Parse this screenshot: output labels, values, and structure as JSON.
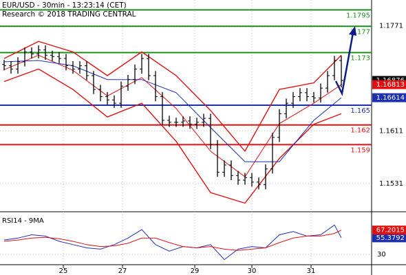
{
  "header": {
    "title": "EUR/USD - 30min - 13:23:14 (CET)",
    "subtitle": "Research © 2018 TRADING CENTRAL"
  },
  "chart_data": [
    {
      "type": "ohlc",
      "xlim": [
        -0.6,
        53.4
      ],
      "xticks": [
        {
          "value": 8.6,
          "label": "25"
        },
        {
          "value": 17.2,
          "label": "27"
        },
        {
          "value": 27.7,
          "label": "29"
        },
        {
          "value": 36,
          "label": "30"
        },
        {
          "value": 44.6,
          "label": "31"
        }
      ],
      "ylim": [
        1.149,
        1.181
      ],
      "yticks": [
        1.1531,
        1.1611,
        1.1771
      ],
      "grid": true,
      "color": "#000000",
      "open": [
        1.1712,
        1.171,
        1.1705,
        1.1716,
        1.1731,
        1.1728,
        1.1734,
        1.1726,
        1.1724,
        1.1721,
        1.171,
        1.1705,
        1.171,
        1.1695,
        1.1674,
        1.1663,
        1.1658,
        1.1653,
        1.1679,
        1.1689,
        1.1705,
        1.1721,
        1.1695,
        1.1663,
        1.1627,
        1.1624,
        1.1624,
        1.1626,
        1.1621,
        1.1624,
        1.163,
        1.159,
        1.1548,
        1.1559,
        1.1543,
        1.1536,
        1.154,
        1.1533,
        1.1529,
        1.1553,
        1.1601,
        1.1637,
        1.1653,
        1.1663,
        1.1669,
        1.1663,
        1.1661,
        1.1676,
        1.1695,
        1.1718
      ],
      "high": [
        1.1719,
        1.1717,
        1.1723,
        1.1738,
        1.1738,
        1.1741,
        1.1741,
        1.1733,
        1.1731,
        1.1728,
        1.1717,
        1.1717,
        1.1717,
        1.1702,
        1.1681,
        1.167,
        1.1665,
        1.1686,
        1.1696,
        1.1712,
        1.1728,
        1.1728,
        1.1702,
        1.167,
        1.1634,
        1.1631,
        1.1633,
        1.1633,
        1.1631,
        1.1637,
        1.1637,
        1.1597,
        1.1566,
        1.1566,
        1.155,
        1.1547,
        1.1547,
        1.154,
        1.156,
        1.1608,
        1.1644,
        1.166,
        1.167,
        1.1676,
        1.1676,
        1.167,
        1.1683,
        1.1702,
        1.1725,
        1.1725
      ],
      "low": [
        1.1703,
        1.1698,
        1.1698,
        1.1709,
        1.1721,
        1.1721,
        1.1719,
        1.1717,
        1.1714,
        1.1703,
        1.1698,
        1.1698,
        1.1688,
        1.1667,
        1.1656,
        1.1651,
        1.1646,
        1.1646,
        1.1672,
        1.1682,
        1.1698,
        1.1688,
        1.1656,
        1.162,
        1.1617,
        1.1617,
        1.1617,
        1.1614,
        1.1614,
        1.1617,
        1.1583,
        1.1541,
        1.1541,
        1.1536,
        1.1529,
        1.1529,
        1.1526,
        1.1522,
        1.1522,
        1.1546,
        1.1594,
        1.163,
        1.1646,
        1.1656,
        1.1656,
        1.1654,
        1.1654,
        1.1669,
        1.1688,
        1.1677
      ],
      "close": [
        1.171,
        1.1705,
        1.1716,
        1.1731,
        1.1728,
        1.1734,
        1.1726,
        1.1724,
        1.1721,
        1.171,
        1.1705,
        1.171,
        1.1695,
        1.1674,
        1.1663,
        1.1658,
        1.1653,
        1.1679,
        1.1689,
        1.1705,
        1.1721,
        1.1695,
        1.1663,
        1.1627,
        1.1624,
        1.1624,
        1.1626,
        1.1621,
        1.1624,
        1.163,
        1.159,
        1.1548,
        1.1559,
        1.1543,
        1.1536,
        1.154,
        1.1533,
        1.1529,
        1.1553,
        1.1601,
        1.1637,
        1.1653,
        1.1663,
        1.1669,
        1.1663,
        1.1661,
        1.1676,
        1.1695,
        1.1718,
        1.16876
      ],
      "series": [
        {
          "color": "#e01010",
          "x": [
            0,
            5,
            10,
            15,
            20,
            25,
            30,
            35,
            40,
            45,
            49
          ],
          "values": [
            1.1721,
            1.1747,
            1.1731,
            1.1695,
            1.1731,
            1.1695,
            1.1642,
            1.158,
            1.1674,
            1.1684,
            1.1726
          ]
        },
        {
          "color": "#e01010",
          "x": [
            0,
            5,
            10,
            15,
            20,
            25,
            30,
            35,
            40,
            45,
            49
          ],
          "values": [
            1.1686,
            1.1705,
            1.1674,
            1.1632,
            1.1653,
            1.1595,
            1.1517,
            1.1501,
            1.1569,
            1.1621,
            1.1637
          ]
        },
        {
          "color": "#e01010",
          "x": [
            0,
            5,
            10,
            15,
            20,
            25,
            30,
            35,
            40,
            45,
            49
          ],
          "values": [
            1.1704,
            1.1726,
            1.1703,
            1.1664,
            1.1692,
            1.1645,
            1.158,
            1.1541,
            1.1622,
            1.1653,
            1.16813
          ]
        },
        {
          "color": "#1c2fb0",
          "x": [
            0,
            5,
            10,
            15,
            20,
            25,
            30,
            35,
            40,
            45,
            49
          ],
          "values": [
            1.1716,
            1.1718,
            1.171,
            1.1689,
            1.1689,
            1.1669,
            1.1616,
            1.1564,
            1.1564,
            1.1627,
            1.16614
          ]
        }
      ],
      "levels": [
        {
          "value": 1.1795,
          "color": "#1e8c1e"
        },
        {
          "value": 1.177,
          "color": "#1e8c1e"
        },
        {
          "value": 1.173,
          "color": "#1e8c1e"
        },
        {
          "value": 1.165,
          "color": "#1c2fb0"
        },
        {
          "value": 1.162,
          "color": "#e01010"
        },
        {
          "value": 1.159,
          "color": "#e01010"
        }
      ]
    },
    {
      "type": "line",
      "title": "RSI14 - 9MA",
      "xlim": [
        -0.6,
        53.4
      ],
      "ylim": [
        10,
        90
      ],
      "yticks": [
        30
      ],
      "grid": true,
      "x": [
        0,
        2,
        4,
        6,
        8,
        10,
        12,
        14,
        16,
        18,
        20,
        22,
        24,
        26,
        28,
        30,
        32,
        34,
        36,
        38,
        40,
        42,
        44,
        46,
        48,
        49
      ],
      "series": [
        {
          "color": "#1c2fb0",
          "values": [
            52,
            55,
            60,
            58,
            50,
            45,
            40,
            38,
            45,
            55,
            68,
            45,
            35,
            42,
            40,
            45,
            22,
            38,
            42,
            40,
            60,
            65,
            58,
            60,
            75,
            55.3792
          ]
        },
        {
          "color": "#e01010",
          "values": [
            50,
            52,
            55,
            56,
            54,
            50,
            45,
            42,
            43,
            47,
            55,
            55,
            48,
            42,
            40,
            42,
            38,
            36,
            38,
            40,
            48,
            55,
            58,
            58,
            62,
            67.2015
          ]
        }
      ]
    }
  ]
}
